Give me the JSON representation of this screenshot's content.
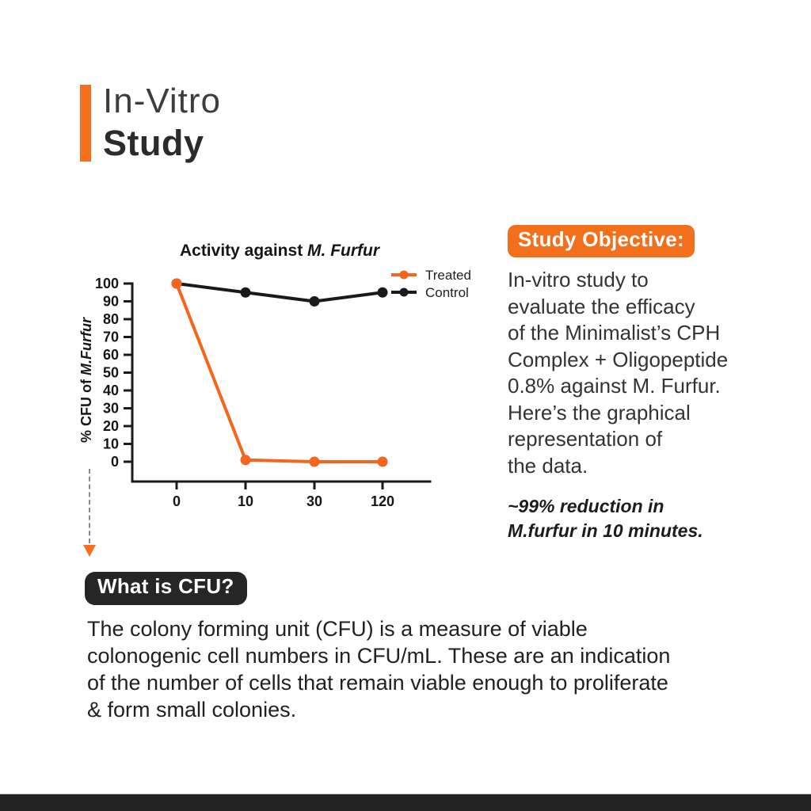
{
  "header": {
    "title_line1": "In-Vitro",
    "title_line2": "Study",
    "accent_color": "#F4701D"
  },
  "chart_data": {
    "type": "line",
    "title_prefix": "Activity against ",
    "title_italic": "M. Furfur",
    "ylabel_prefix": "% CFU of ",
    "ylabel_italic": "M.Furfur",
    "categories": [
      "0",
      "10",
      "30",
      "120"
    ],
    "yticks": [
      0,
      10,
      20,
      30,
      40,
      50,
      60,
      70,
      80,
      90,
      100
    ],
    "ylim": [
      0,
      100
    ],
    "axis_color": "#1a1a1a",
    "grid": false,
    "legend_position": "top-right",
    "series": [
      {
        "name": "Treated",
        "color": "#F4661D",
        "values": [
          100,
          1,
          0,
          0
        ]
      },
      {
        "name": "Control",
        "color": "#1a1a1a",
        "values": [
          100,
          95,
          90,
          95
        ]
      }
    ]
  },
  "study_objective": {
    "badge_label": "Study Objective:",
    "badge_color": "#F2701C",
    "body_lines": [
      "In-vitro study to",
      "evaluate the efficacy",
      "of the Minimalist’s CPH",
      "Complex + Oligopeptide",
      "0.8% against M. Furfur.",
      "Here’s the graphical",
      "representation of",
      "the data."
    ],
    "note_lines": [
      "~99% reduction in",
      "M.furfur in 10 minutes."
    ]
  },
  "cfu": {
    "badge_label": "What is CFU?",
    "badge_color": "#262626",
    "body_lines": [
      "The colony forming unit (CFU) is a measure of viable",
      "colonogenic cell numbers in CFU/mL. These are an indication",
      "of the number of cells that remain viable enough to proliferate",
      "& form small colonies."
    ]
  },
  "footer": {
    "bar_color": "#232323"
  }
}
